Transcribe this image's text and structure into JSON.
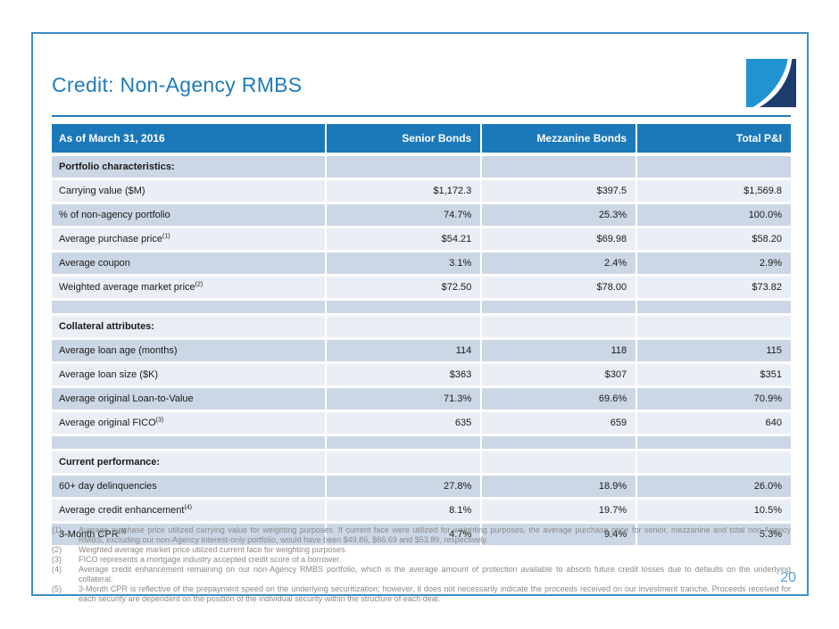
{
  "slide": {
    "title": "Credit: Non-Agency RMBS",
    "page_number": "20"
  },
  "colors": {
    "accent_blue": "#1f7cbb",
    "header_bg": "#1b79b9",
    "row_dark": "#ccd7e5",
    "row_light": "#eaeef5",
    "logo_light": "#2293d2",
    "logo_navy": "#1c3c6d",
    "footnote_gray": "#8a8a8a",
    "page_number_blue": "#58a3d9",
    "border_blue": "#3f8ec6"
  },
  "table": {
    "header": [
      "As of March 31, 2016",
      "Senior Bonds",
      "Mezzanine Bonds",
      "Total P&I"
    ],
    "rows": [
      {
        "type": "section",
        "label": "Portfolio characteristics:"
      },
      {
        "type": "data",
        "label": "Carrying value ($M)",
        "values": [
          "$1,172.3",
          "$397.5",
          "$1,569.8"
        ]
      },
      {
        "type": "data",
        "label": "% of non-agency portfolio",
        "values": [
          "74.7%",
          "25.3%",
          "100.0%"
        ]
      },
      {
        "type": "data",
        "label": "Average purchase price",
        "sup": "(1)",
        "values": [
          "$54.21",
          "$69.98",
          "$58.20"
        ]
      },
      {
        "type": "data",
        "label": "Average coupon",
        "values": [
          "3.1%",
          "2.4%",
          "2.9%"
        ]
      },
      {
        "type": "data",
        "label": "Weighted average market price",
        "sup": "(2)",
        "values": [
          "$72.50",
          "$78.00",
          "$73.82"
        ]
      },
      {
        "type": "spacer"
      },
      {
        "type": "section",
        "label": "Collateral attributes:"
      },
      {
        "type": "data",
        "label": "Average loan age (months)",
        "values": [
          "114",
          "118",
          "115"
        ]
      },
      {
        "type": "data",
        "label": "Average loan size ($K)",
        "values": [
          "$363",
          "$307",
          "$351"
        ]
      },
      {
        "type": "data",
        "label": "Average original Loan-to-Value",
        "values": [
          "71.3%",
          "69.6%",
          "70.9%"
        ]
      },
      {
        "type": "data",
        "label": "Average original FICO",
        "sup": "(3)",
        "values": [
          "635",
          "659",
          "640"
        ]
      },
      {
        "type": "spacer"
      },
      {
        "type": "section",
        "label": "Current performance:"
      },
      {
        "type": "data",
        "label": "60+ day delinquencies",
        "values": [
          "27.8%",
          "18.9%",
          "26.0%"
        ]
      },
      {
        "type": "data",
        "label": "Average credit enhancement",
        "sup": "(4)",
        "values": [
          "8.1%",
          "19.7%",
          "10.5%"
        ]
      },
      {
        "type": "data",
        "label": "3-Month CPR",
        "sup": "(5)",
        "values": [
          "4.7%",
          "9.4%",
          "5.3%"
        ]
      }
    ]
  },
  "footnotes": [
    {
      "num": "(1)",
      "text": "Average purchase price utilized carrying value for weighting purposes. If current face were utilized for weighting purposes, the average purchase price for senior, mezzanine and total non-Agency RMBS, excluding our non-Agency interest-only portfolio, would have been $49.86, $66.69 and $53.89, respectively."
    },
    {
      "num": "(2)",
      "text": "Weighted average market price utilized current face for weighting purposes."
    },
    {
      "num": "(3)",
      "text": "FICO represents a mortgage industry accepted credit score of a borrower."
    },
    {
      "num": "(4)",
      "text": "Average credit enhancement remaining on our non-Agency RMBS portfolio, which is the average amount of protection available to absorb future credit losses due to defaults on the underlying collateral."
    },
    {
      "num": "(5)",
      "text": "3-Month CPR is reflective of the prepayment speed on the underlying securitization; however, it does not necessarily indicate the proceeds received on our investment tranche. Proceeds received for each security are dependent on the position of the individual security within the structure of each deal."
    }
  ]
}
